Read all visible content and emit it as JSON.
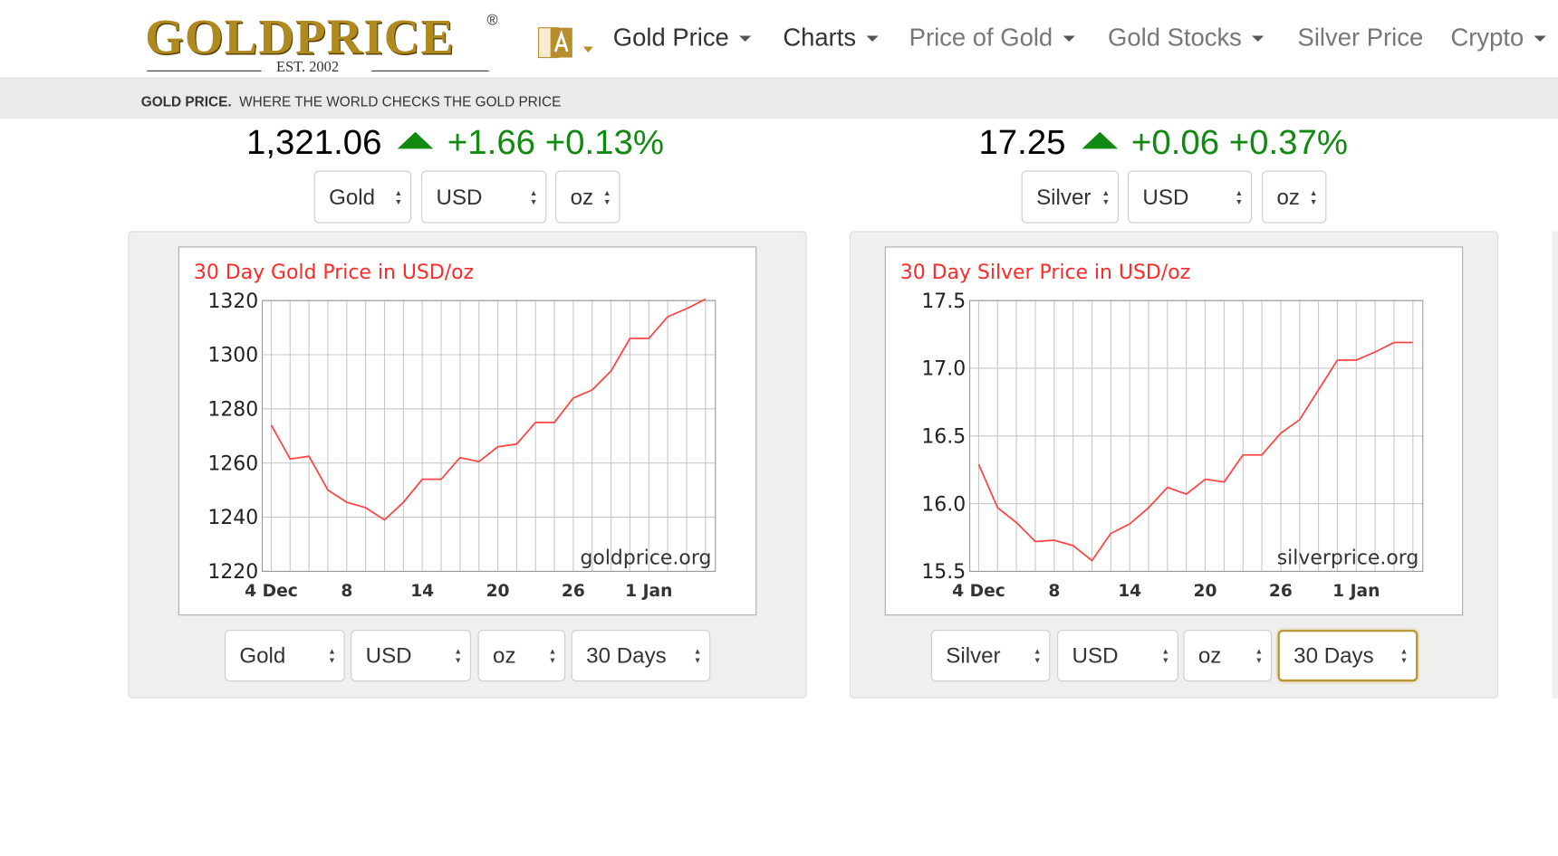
{
  "header": {
    "logo": "GOLDPRICE",
    "registered": "®",
    "est": "EST. 2002",
    "nav": [
      "Gold Price",
      "Charts",
      "Price of Gold",
      "Gold Stocks",
      "Silver Price",
      "Crypto"
    ],
    "tagline_bold": "GOLD PRICE.",
    "tagline": "WHERE THE WORLD CHECKS THE GOLD PRICE"
  },
  "panels": [
    {
      "price": "1,321.06",
      "change": "+1.66",
      "change_pct": "+0.13%",
      "top_selects": [
        "Gold",
        "USD",
        "oz"
      ],
      "bottom_selects": [
        "Gold",
        "USD",
        "oz",
        "30 Days"
      ]
    },
    {
      "price": "17.25",
      "change": "+0.06",
      "change_pct": "+0.37%",
      "top_selects": [
        "Silver",
        "USD",
        "oz"
      ],
      "bottom_selects": [
        "Silver",
        "USD",
        "oz",
        "30 Days"
      ]
    }
  ],
  "chart_data": [
    {
      "type": "line",
      "title": "30 Day Gold Price in USD/oz",
      "watermark": "goldprice.org",
      "color": "#ff4444",
      "grid": true,
      "categories": [
        "4 Dec",
        null,
        null,
        null,
        "8",
        null,
        null,
        null,
        "14",
        null,
        null,
        null,
        "20",
        null,
        null,
        null,
        "26",
        null,
        null,
        null,
        "1 Jan",
        null,
        null,
        null
      ],
      "values": [
        1274,
        1261.5,
        1262.5,
        1250,
        1245.5,
        1243.5,
        1239,
        1245.5,
        1254,
        1254,
        1262,
        1260.5,
        1266,
        1267,
        1275,
        1275,
        1284,
        1287,
        1294,
        1306,
        1306,
        1314,
        1317,
        1320.5
      ],
      "ylim": [
        1220,
        1320
      ],
      "yticks": [
        1220,
        1240,
        1260,
        1280,
        1300,
        1320
      ]
    },
    {
      "type": "line",
      "title": "30 Day Silver Price in USD/oz",
      "watermark": "silverprice.org",
      "color": "#ff4444",
      "grid": true,
      "categories": [
        "4 Dec",
        null,
        null,
        null,
        "8",
        null,
        null,
        null,
        "14",
        null,
        null,
        null,
        "20",
        null,
        null,
        null,
        "26",
        null,
        null,
        null,
        "1 Jan",
        null,
        null,
        null
      ],
      "values": [
        16.29,
        15.97,
        15.86,
        15.72,
        15.73,
        15.69,
        15.58,
        15.78,
        15.85,
        15.97,
        16.12,
        16.07,
        16.18,
        16.16,
        16.36,
        16.36,
        16.52,
        16.62,
        16.84,
        17.06,
        17.06,
        17.12,
        17.19,
        17.19
      ],
      "ylim": [
        15.5,
        17.5
      ],
      "yticks": [
        15.5,
        {
          "value": 16,
          "label": "16.0"
        },
        16.5,
        {
          "value": 17,
          "label": "17.0"
        },
        17.5
      ]
    }
  ]
}
